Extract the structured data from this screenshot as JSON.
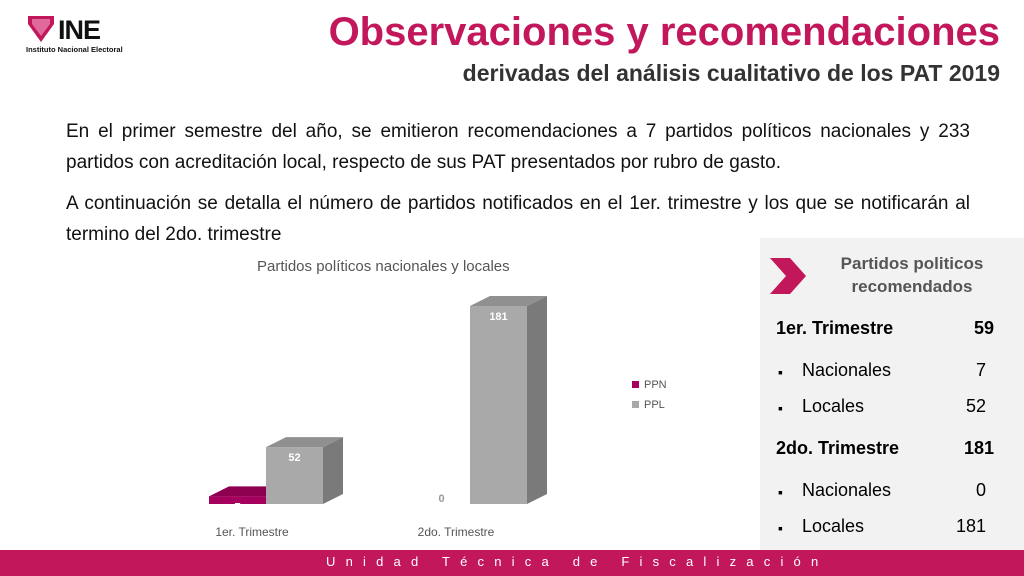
{
  "logo": {
    "name": "INE",
    "subtitle": "Instituto Nacional Electoral"
  },
  "header": {
    "title": "Observaciones y recomendaciones",
    "subtitle": "derivadas del análisis cualitativo de los PAT 2019"
  },
  "body": {
    "paragraph1": "En el primer semestre del año, se emitieron recomendaciones a 7 partidos políticos nacionales y 233 partidos con acreditación local, respecto de sus PAT presentados por rubro de gasto.",
    "paragraph2": "A continuación se detalla el número de partidos notificados en el 1er. trimestre y los que se notificarán al termino del 2do. trimestre"
  },
  "chart_data": {
    "type": "bar",
    "title": "Partidos políticos nacionales y locales",
    "categories": [
      "1er. Trimestre",
      "2do. Trimestre"
    ],
    "series": [
      {
        "name": "PPN",
        "values": [
          7,
          0
        ],
        "color": "#a6005e"
      },
      {
        "name": "PPL",
        "values": [
          52,
          181
        ],
        "color": "#a9a9a9"
      }
    ],
    "ylim": [
      0,
      181
    ],
    "legend": "right",
    "grid": false,
    "three_d": true
  },
  "panel": {
    "title": "Partidos politicos recomendados",
    "rows": [
      {
        "label": "1er. Trimestre",
        "value": "59",
        "kind": "head"
      },
      {
        "label": "Nacionales",
        "value": "7",
        "kind": "sub"
      },
      {
        "label": "Locales",
        "value": "52",
        "kind": "sub"
      },
      {
        "label": "2do. Trimestre",
        "value": "181",
        "kind": "head"
      },
      {
        "label": "Nacionales",
        "value": "0",
        "kind": "sub"
      },
      {
        "label": "Locales",
        "value": "181",
        "kind": "sub"
      }
    ]
  },
  "footer": {
    "text": "Unidad Técnica de Fiscalización"
  },
  "colors": {
    "accent": "#c2185b",
    "bar_ppn": "#a6005e",
    "bar_ppl": "#a9a9a9"
  }
}
